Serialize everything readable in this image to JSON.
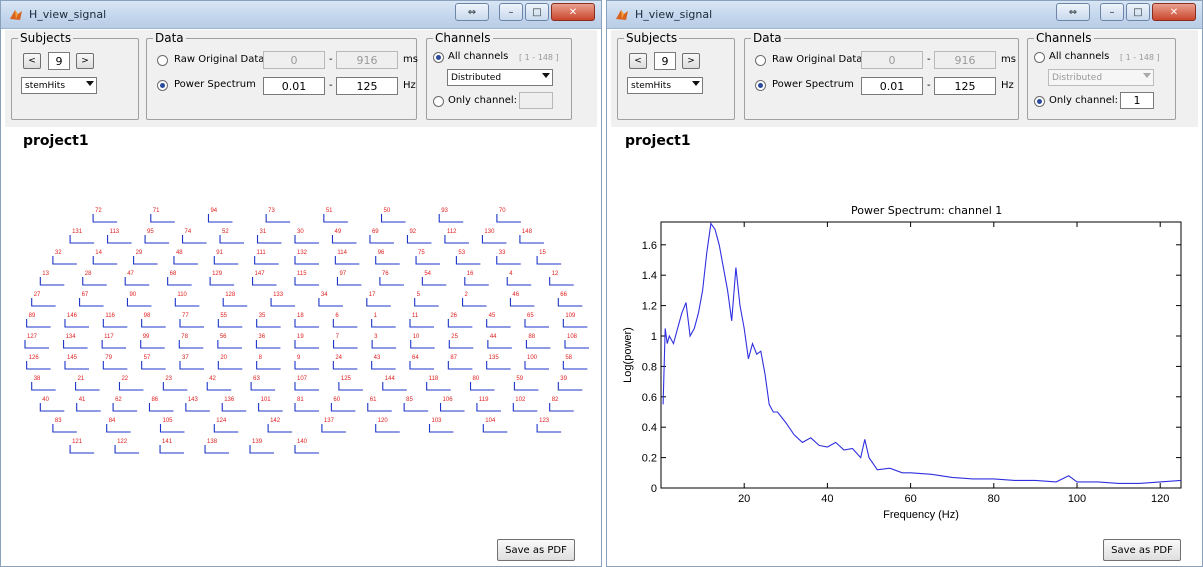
{
  "windows": [
    {
      "title": "H_view_signal",
      "subjects": {
        "legend": "Subjects",
        "value": "9",
        "prev": "<",
        "next": ">",
        "dataset": "stemHits"
      },
      "data": {
        "legend": "Data",
        "raw_label": "Raw Original Data",
        "raw_from": "0",
        "raw_sep": "-",
        "raw_to": "916",
        "raw_unit": "ms",
        "ps_label": "Power Spectrum",
        "ps_from": "0.01",
        "ps_sep": "-",
        "ps_to": "125",
        "ps_unit": "Hz",
        "selected": "power"
      },
      "channels": {
        "legend": "Channels",
        "all_label": "All channels",
        "range": "[ 1 - 148 ]",
        "mode": "Distributed",
        "only_label": "Only channel:",
        "only_value": "",
        "selected": "all"
      },
      "project": "project1",
      "save_label": "Save as PDF"
    },
    {
      "title": "H_view_signal",
      "subjects": {
        "legend": "Subjects",
        "value": "9",
        "prev": "<",
        "next": ">",
        "dataset": "stemHits"
      },
      "data": {
        "legend": "Data",
        "raw_label": "Raw Original Data",
        "raw_from": "0",
        "raw_sep": "-",
        "raw_to": "916",
        "raw_unit": "ms",
        "ps_label": "Power Spectrum",
        "ps_from": "0.01",
        "ps_sep": "-",
        "ps_to": "125",
        "ps_unit": "Hz",
        "selected": "power"
      },
      "channels": {
        "legend": "Channels",
        "all_label": "All channels",
        "range": "[ 1 - 148 ]",
        "mode": "Distributed",
        "only_label": "Only channel:",
        "only_value": "1",
        "selected": "only"
      },
      "project": "project1",
      "save_label": "Save as PDF"
    }
  ],
  "topoplot": {
    "channel_labels": [
      "72",
      "71",
      "94",
      "73",
      "51",
      "50",
      "93",
      "70",
      "131",
      "113",
      "95",
      "74",
      "52",
      "31",
      "30",
      "49",
      "69",
      "92",
      "112",
      "130",
      "148",
      "32",
      "14",
      "29",
      "48",
      "91",
      "111",
      "132",
      "114",
      "96",
      "75",
      "53",
      "33",
      "15",
      "13",
      "28",
      "47",
      "68",
      "129",
      "147",
      "115",
      "97",
      "76",
      "54",
      "16",
      "4",
      "12",
      "27",
      "67",
      "90",
      "110",
      "128",
      "133",
      "34",
      "17",
      "5",
      "2",
      "46",
      "66",
      "89",
      "146",
      "116",
      "98",
      "77",
      "55",
      "35",
      "18",
      "6",
      "1",
      "11",
      "26",
      "45",
      "65",
      "109",
      "127",
      "134",
      "117",
      "99",
      "78",
      "56",
      "36",
      "19",
      "7",
      "3",
      "10",
      "25",
      "44",
      "88",
      "108",
      "126",
      "145",
      "79",
      "57",
      "37",
      "20",
      "8",
      "9",
      "24",
      "43",
      "64",
      "87",
      "135",
      "100",
      "58",
      "38",
      "21",
      "22",
      "23",
      "42",
      "63",
      "107",
      "125",
      "144",
      "118",
      "80",
      "59",
      "39",
      "40",
      "41",
      "62",
      "86",
      "143",
      "136",
      "101",
      "81",
      "60",
      "61",
      "85",
      "106",
      "119",
      "102",
      "82",
      "83",
      "84",
      "105",
      "124",
      "142",
      "137",
      "120",
      "103",
      "104",
      "123",
      "121",
      "122",
      "141",
      "138",
      "139",
      "140"
    ]
  },
  "chart_data": {
    "type": "line",
    "title": "Power Spectrum: channel 1",
    "xlabel": "Frequency (Hz)",
    "ylabel": "Log(power)",
    "xlim": [
      0,
      125
    ],
    "ylim": [
      0,
      1.75
    ],
    "xticks": [
      20,
      40,
      60,
      80,
      100,
      120
    ],
    "yticks": [
      0,
      0.2,
      0.4,
      0.6,
      0.8,
      1,
      1.2,
      1.4,
      1.6
    ],
    "line_color": "#3030e0",
    "series": [
      {
        "x": [
          0.5,
          1,
          1.5,
          2,
          3,
          4,
          5,
          6,
          7,
          8,
          9,
          10,
          11,
          12,
          13,
          14,
          15,
          16,
          17,
          18,
          19,
          20,
          21,
          22,
          23,
          24,
          25,
          26,
          27,
          28,
          30,
          32,
          34,
          36,
          38,
          40,
          42,
          44,
          46,
          48,
          49,
          50,
          52,
          55,
          58,
          60,
          65,
          70,
          75,
          80,
          85,
          90,
          95,
          98,
          100,
          105,
          110,
          115,
          120,
          125
        ],
        "y": [
          0.55,
          1.05,
          0.95,
          1.0,
          0.95,
          1.05,
          1.15,
          1.22,
          1.0,
          1.05,
          1.15,
          1.3,
          1.55,
          1.74,
          1.7,
          1.6,
          1.45,
          1.3,
          1.1,
          1.45,
          1.2,
          1.05,
          0.85,
          0.95,
          0.88,
          0.9,
          0.75,
          0.55,
          0.5,
          0.5,
          0.43,
          0.35,
          0.3,
          0.33,
          0.28,
          0.27,
          0.3,
          0.25,
          0.26,
          0.2,
          0.32,
          0.2,
          0.12,
          0.13,
          0.1,
          0.1,
          0.09,
          0.07,
          0.06,
          0.06,
          0.05,
          0.05,
          0.04,
          0.08,
          0.04,
          0.04,
          0.03,
          0.03,
          0.04,
          0.05
        ]
      }
    ]
  }
}
